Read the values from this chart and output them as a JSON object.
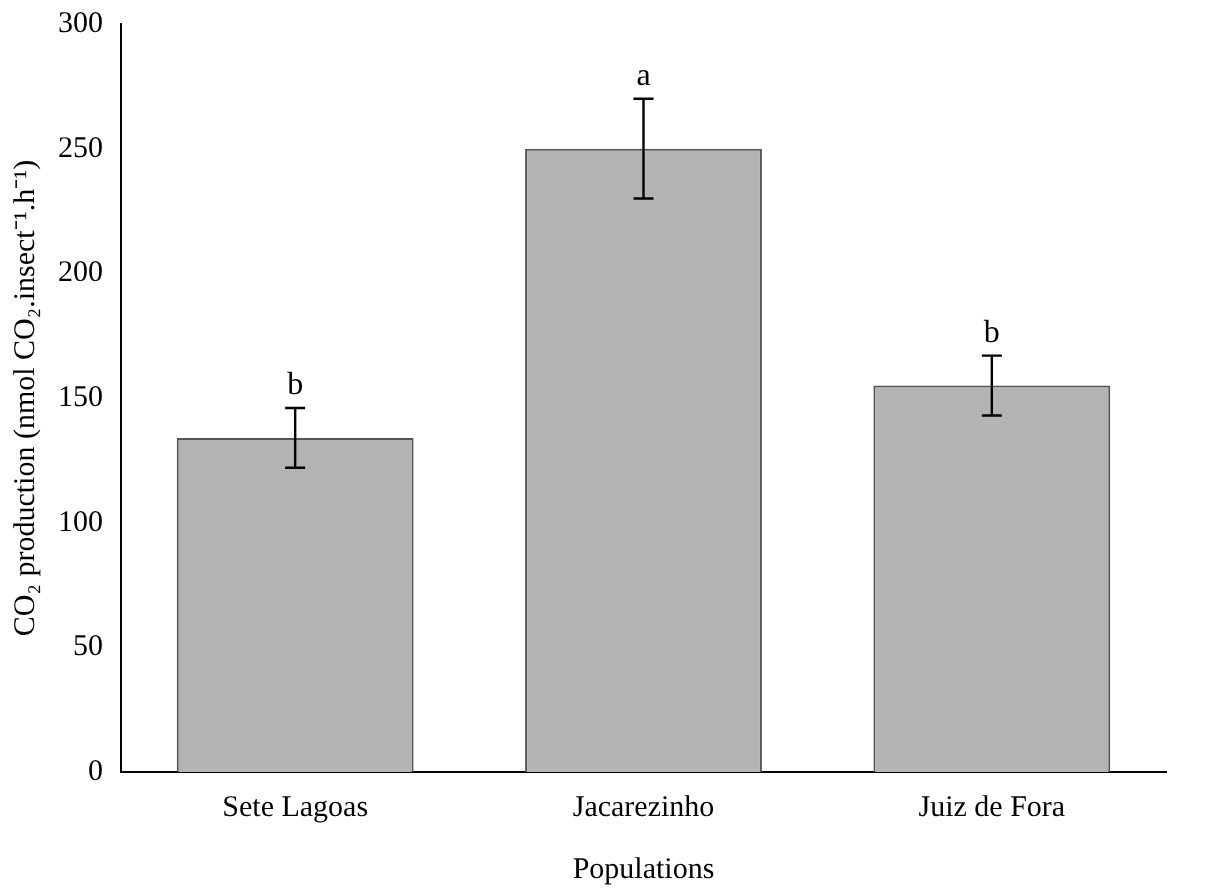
{
  "chart_data": {
    "type": "bar",
    "xlabel": "Populations",
    "ylabel": "CO₂ production (nmol CO₂.insect⁻¹.h⁻¹)",
    "categories": [
      "Sete Lagoas",
      "Jacarezinho",
      "Juiz de Fora"
    ],
    "values": [
      134,
      250,
      155
    ],
    "errors": [
      12,
      20,
      12
    ],
    "color": "#b4b4b4",
    "ylim": [
      0,
      300
    ],
    "yticks": [
      0,
      50,
      100,
      150,
      200,
      250,
      300
    ],
    "grid": false,
    "legend": false,
    "annotations": [
      {
        "text": "b",
        "x": "Sete Lagoas",
        "y": 146
      },
      {
        "text": "a",
        "x": "Jacarezinho",
        "y": 270
      },
      {
        "text": "b",
        "x": "Juiz de Fora",
        "y": 167
      }
    ]
  }
}
